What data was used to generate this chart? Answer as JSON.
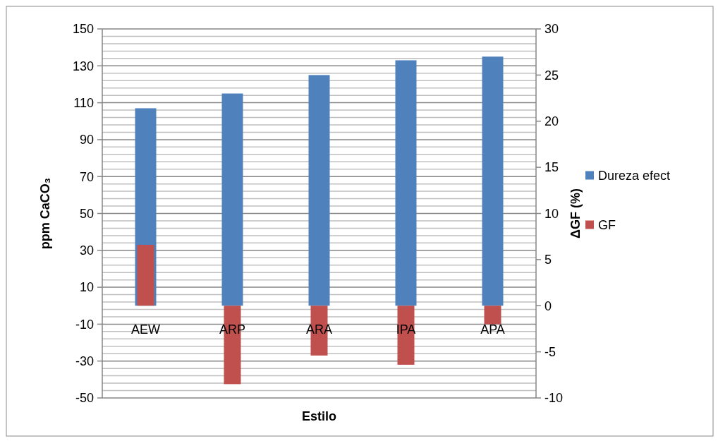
{
  "chart_data": {
    "type": "bar",
    "xlabel": "Estilo",
    "ylabel": "ppm CaCO₃",
    "y2label": "ΔGF (%)",
    "categories": [
      "AEW",
      "ARP",
      "ARA",
      "IPA",
      "APA"
    ],
    "series": [
      {
        "name": "Dureza efect",
        "color": "#4f81bd",
        "values": [
          107,
          115,
          125,
          133,
          135
        ]
      },
      {
        "name": "GF",
        "color": "#c0504d",
        "axis": "y2",
        "values": [
          6.6,
          -8.5,
          -5.4,
          -6.4,
          -2
        ]
      }
    ],
    "ylim": [
      -50,
      150
    ],
    "yticks": [
      -50,
      -30,
      -10,
      10,
      30,
      50,
      70,
      90,
      110,
      130,
      150
    ],
    "y2lim": [
      -10,
      30
    ],
    "y2ticks": [
      -10,
      -5,
      0,
      5,
      10,
      15,
      20,
      25,
      30
    ],
    "grid": true,
    "legend": "right"
  }
}
